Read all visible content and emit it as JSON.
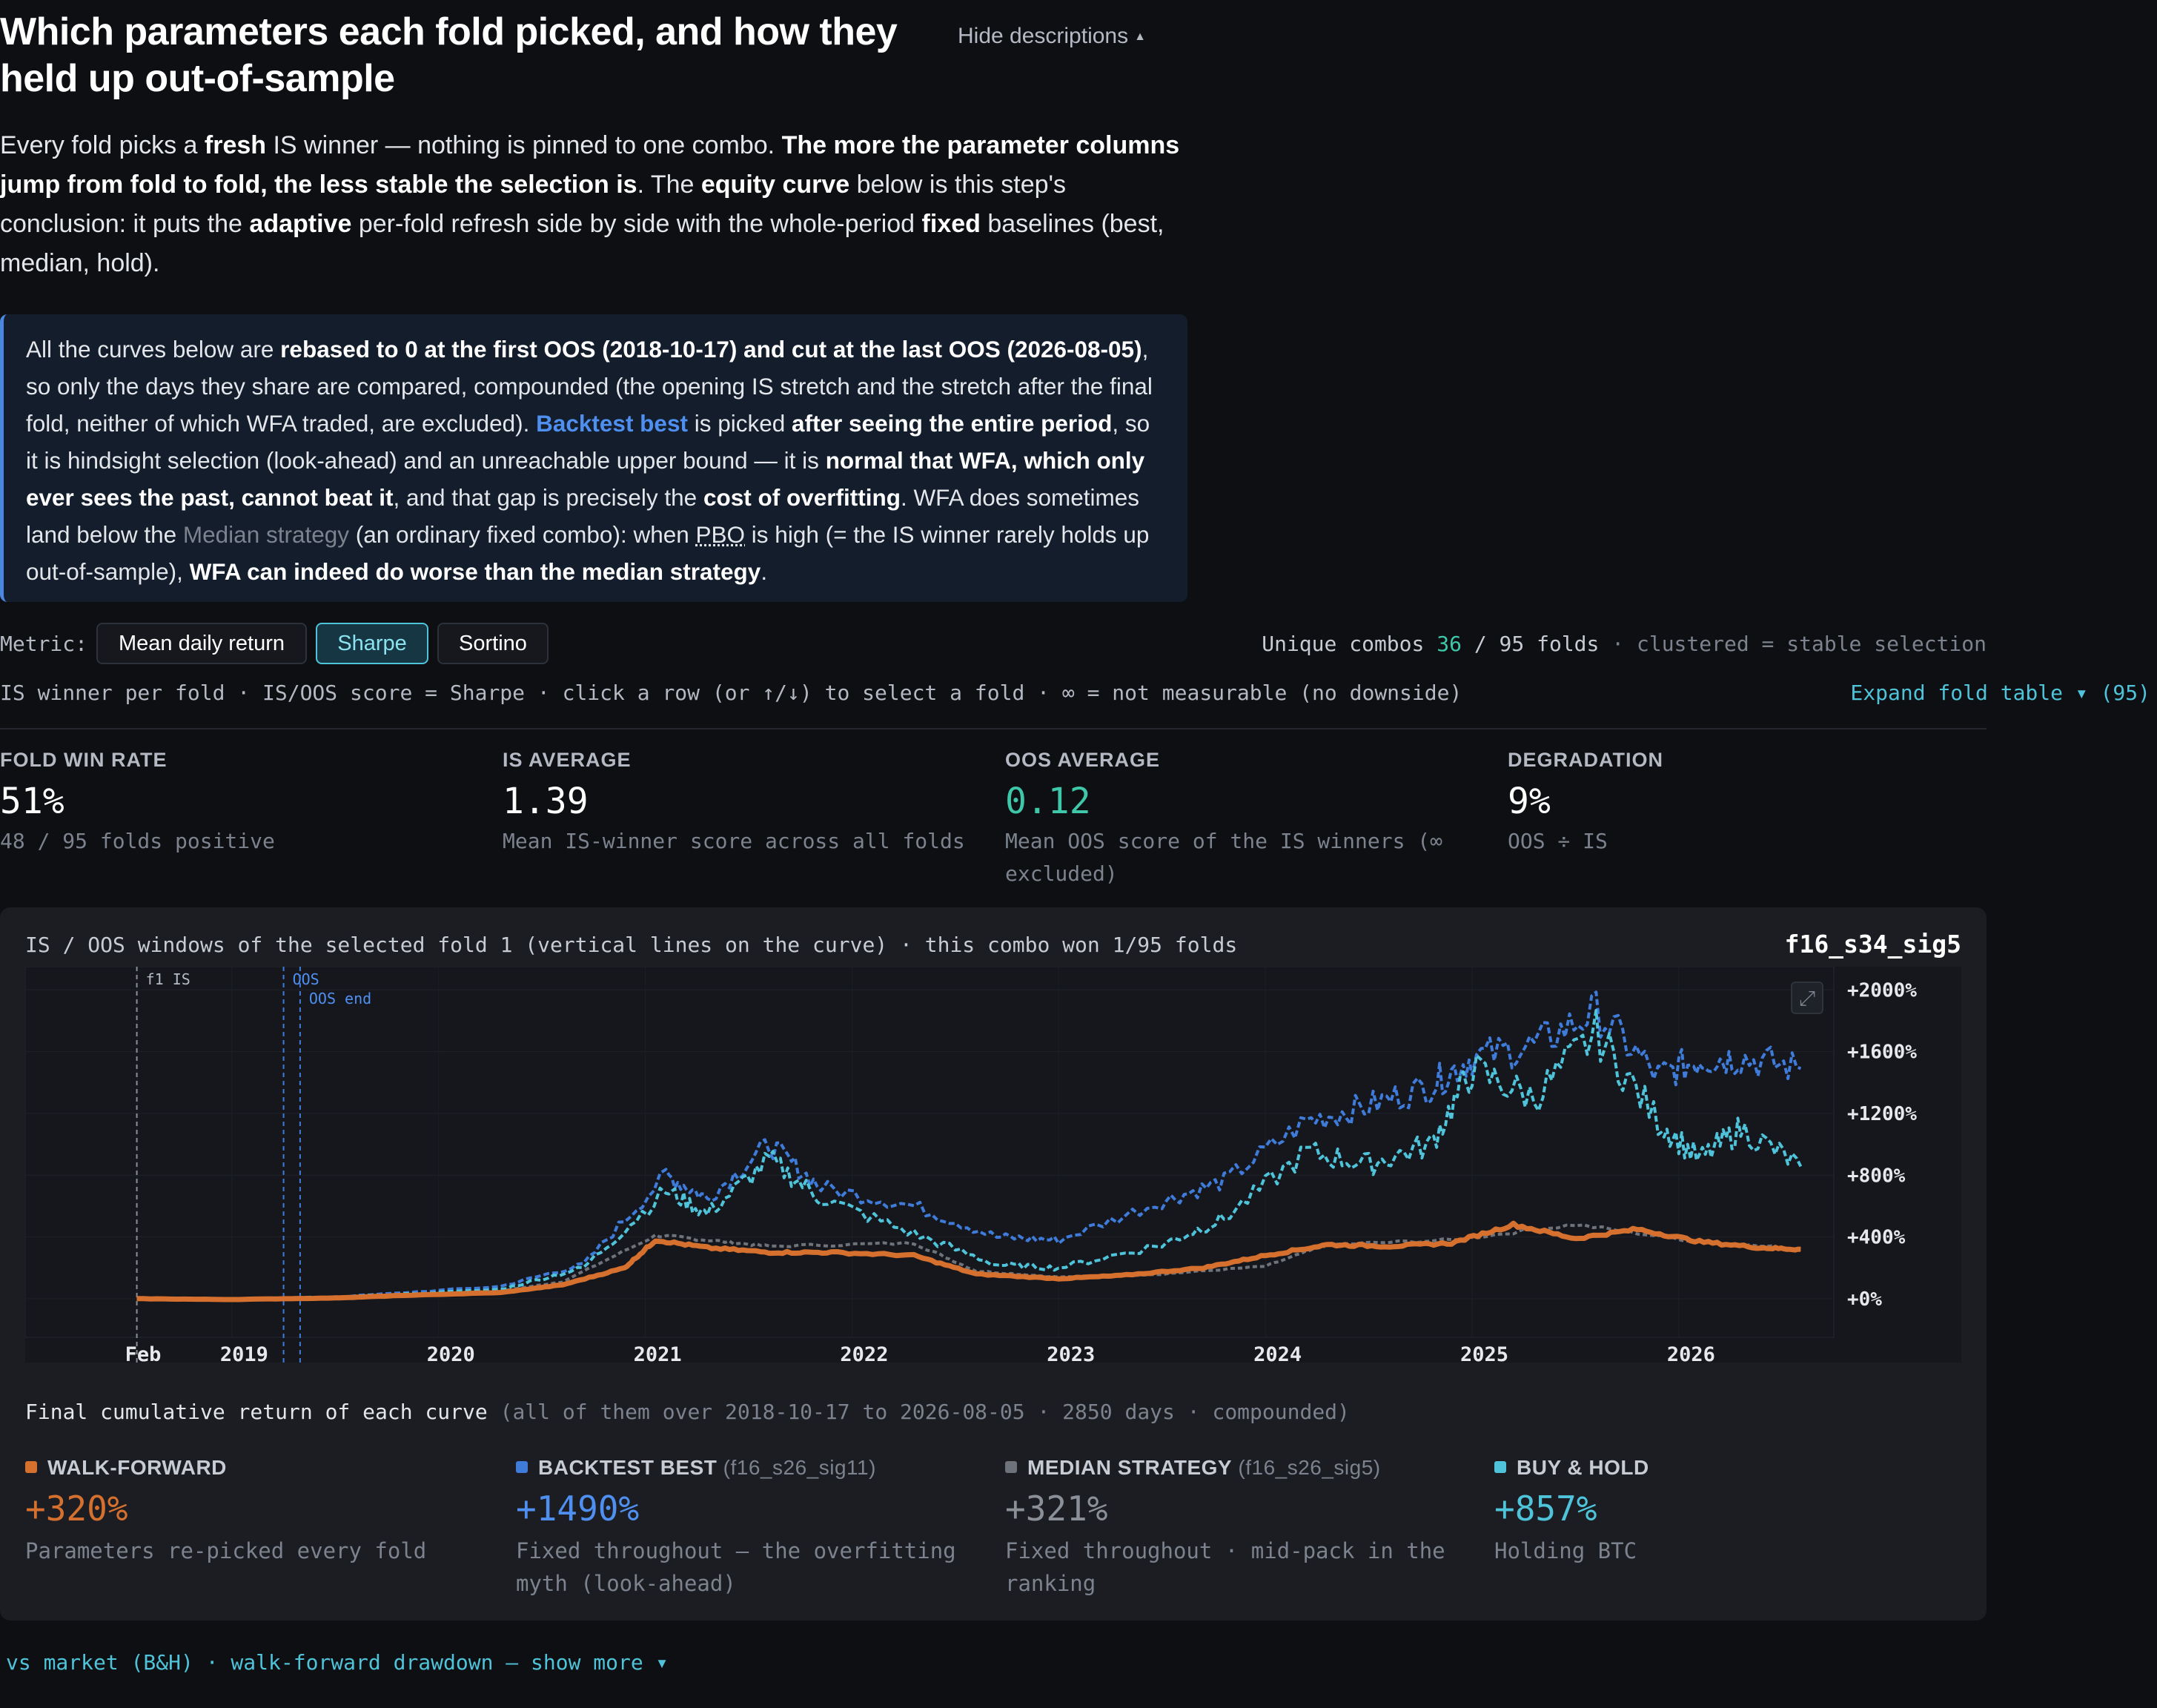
{
  "colors": {
    "walk_forward": "#d5702e",
    "backtest_best": "#3f7bd9",
    "median": "#6e727a",
    "buy_hold": "#4fc3d9",
    "accent_teal": "#3ec7a8",
    "background": "#0e0f12"
  },
  "header": {
    "title": "Which parameters each fold picked, and how they held up out-of-sample",
    "hide_descriptions": "Hide descriptions",
    "caret_icon": "caret-up-icon"
  },
  "intro": {
    "p1": "Every fold picks a ",
    "b1": "fresh",
    "p2": " IS winner — nothing is pinned to one combo. ",
    "b2": "The more the parameter columns jump from fold to fold, the less stable the selection is",
    "p3": ". The ",
    "b3": "equity curve",
    "p4": " below is this step's conclusion: it puts the ",
    "b4": "adaptive",
    "p5": " per-fold refresh side by side with the whole-period ",
    "b5": "fixed",
    "p6": " baselines (best, median, hold)."
  },
  "callout": {
    "t1": "All the curves below are ",
    "b1": "rebased to 0 at the first OOS (2018-10-17) and cut at the last OOS (2026-08-05)",
    "t2": ", so only the days they share are compared, compounded (the opening IS stretch and the stretch after the final fold, neither of which WFA traded, are excluded). ",
    "blue1": "Backtest best",
    "t3": " is picked ",
    "b2": "after seeing the entire period",
    "t4": ", so it is hindsight selection (look-ahead) and an unreachable upper bound — it is ",
    "b3": "normal that WFA, which only ever sees the past, cannot beat it",
    "t5": ", and that gap is precisely the ",
    "b4": "cost of overfitting",
    "t6": ". WFA does sometimes land below the ",
    "gray1": "Median strategy",
    "t7": " (an ordinary fixed combo): when ",
    "pbo": "PBO",
    "t8": " is high (= the IS winner rarely holds up out-of-sample), ",
    "b5": "WFA can indeed do worse than the median strategy",
    "t9": "."
  },
  "metric": {
    "label": "Metric:",
    "options": [
      "Mean daily return",
      "Sharpe",
      "Sortino"
    ],
    "selected": "Sharpe",
    "unique_prefix": "Unique combos ",
    "unique_count": "36",
    "unique_suffix": " / 95 folds",
    "unique_note": " · clustered = stable selection"
  },
  "hint": {
    "text": "IS winner per fold · IS/OOS score = Sharpe · click a row (or ↑/↓) to select a fold · ∞ = not measurable (no downside)",
    "expand": "Expand fold table ▾ (95)"
  },
  "stats": [
    {
      "label": "FOLD WIN RATE",
      "value": "51%",
      "sub": "48 / 95 folds positive"
    },
    {
      "label": "IS AVERAGE",
      "value": "1.39",
      "sub": "Mean IS-winner score across all folds"
    },
    {
      "label": "OOS AVERAGE",
      "value": "0.12",
      "sub": "Mean OOS score of the IS winners (∞ excluded)"
    },
    {
      "label": "DEGRADATION",
      "value": "9%",
      "sub": "OOS ÷ IS"
    }
  ],
  "panel": {
    "header": "IS / OOS windows of the selected fold 1 (vertical lines on the curve) · this combo won 1/95 folds",
    "combo": "f16_s34_sig5",
    "expand_icon": "expand-icon",
    "final_title": "Final cumulative return of each curve",
    "final_note": " (all of them over 2018-10-17 to 2026-08-05 · 2850 days · compounded)"
  },
  "chart_data": {
    "type": "line",
    "x_labels": [
      "Feb",
      "2019",
      "2020",
      "2021",
      "2022",
      "2023",
      "2024",
      "2025",
      "2026"
    ],
    "y_ticks": [
      "+2000%",
      "+1600%",
      "+1200%",
      "+800%",
      "+400%",
      "+0%"
    ],
    "ylim": [
      -250,
      2150
    ],
    "xlim": [
      2018.0,
      2026.75
    ],
    "y_unit": "%",
    "markers": [
      {
        "label": "f1 IS",
        "x": 2018.54
      },
      {
        "label": "OOS",
        "x": 2019.25
      },
      {
        "label": "OOS end",
        "x": 2019.33
      }
    ],
    "series": [
      {
        "name": "WALK-FORWARD",
        "x": [
          2018.54,
          2019.0,
          2019.5,
          2019.8,
          2020.3,
          2020.6,
          2020.9,
          2021.05,
          2021.3,
          2021.6,
          2021.9,
          2022.3,
          2022.6,
          2023.0,
          2023.3,
          2023.7,
          2024.0,
          2024.3,
          2024.6,
          2024.9,
          2025.2,
          2025.5,
          2025.8,
          2026.1,
          2026.4,
          2026.59
        ],
        "y": [
          0,
          -5,
          5,
          20,
          40,
          90,
          200,
          380,
          330,
          300,
          300,
          280,
          160,
          130,
          150,
          200,
          280,
          350,
          340,
          360,
          480,
          390,
          450,
          370,
          330,
          320
        ]
      },
      {
        "name": "BACKTEST BEST",
        "x": [
          2018.54,
          2019.0,
          2019.5,
          2020.3,
          2020.7,
          2021.1,
          2021.3,
          2021.6,
          2021.85,
          2022.3,
          2022.7,
          2023.0,
          2023.5,
          2023.8,
          2024.2,
          2024.5,
          2024.8,
          2025.0,
          2025.3,
          2025.6,
          2025.9,
          2026.1,
          2026.3,
          2026.59
        ],
        "y": [
          0,
          -5,
          10,
          80,
          220,
          800,
          650,
          1000,
          720,
          600,
          400,
          380,
          630,
          760,
          1150,
          1250,
          1380,
          1560,
          1640,
          1860,
          1440,
          1550,
          1560,
          1490
        ]
      },
      {
        "name": "MEDIAN STRATEGY",
        "x": [
          2018.54,
          2019.0,
          2019.5,
          2020.3,
          2020.6,
          2021.05,
          2021.3,
          2021.6,
          2022.3,
          2022.6,
          2023.0,
          2023.5,
          2024.0,
          2024.3,
          2024.9,
          2025.5,
          2026.1,
          2026.59
        ],
        "y": [
          0,
          0,
          10,
          50,
          110,
          410,
          380,
          340,
          360,
          180,
          140,
          160,
          210,
          350,
          380,
          480,
          370,
          321
        ]
      },
      {
        "name": "BUY & HOLD",
        "x": [
          2018.54,
          2019.0,
          2019.5,
          2020.3,
          2020.7,
          2021.1,
          2021.3,
          2021.6,
          2021.85,
          2022.3,
          2022.7,
          2023.0,
          2023.5,
          2023.8,
          2024.2,
          2024.5,
          2024.8,
          2025.0,
          2025.3,
          2025.6,
          2025.9,
          2026.1,
          2026.3,
          2026.59
        ],
        "y": [
          0,
          -5,
          10,
          60,
          200,
          700,
          550,
          900,
          650,
          420,
          220,
          200,
          350,
          520,
          950,
          870,
          1000,
          1480,
          1300,
          1720,
          1150,
          900,
          1100,
          857
        ]
      }
    ]
  },
  "results": [
    {
      "label": "WALK-FORWARD",
      "combo": "",
      "value": "+320%",
      "sub": "Parameters re-picked every fold",
      "color": "#d5702e"
    },
    {
      "label": "BACKTEST BEST",
      "combo": " (f16_s26_sig11)",
      "value": "+1490%",
      "sub": "Fixed throughout — the overfitting myth (look-ahead)",
      "color": "#3f7bd9"
    },
    {
      "label": "MEDIAN STRATEGY",
      "combo": " (f16_s26_sig5)",
      "value": "+321%",
      "sub": "Fixed throughout · mid-pack in the ranking",
      "color": "#6e727a"
    },
    {
      "label": "BUY & HOLD",
      "combo": "",
      "value": "+857%",
      "sub": "Holding BTC",
      "color": "#4fc3d9"
    }
  ],
  "footer": {
    "more": "vs market (B&H) · walk-forward drawdown — show more ▾"
  }
}
